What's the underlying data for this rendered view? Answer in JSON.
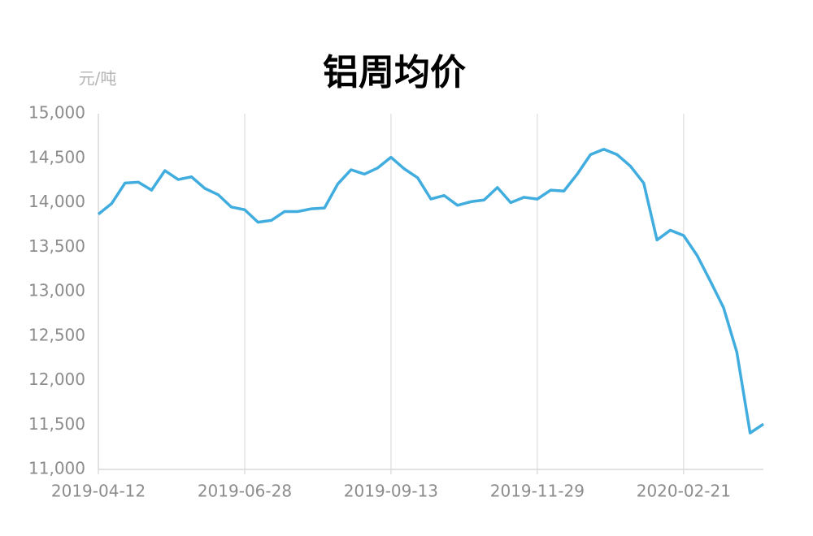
{
  "chart_data": {
    "type": "line",
    "title": "铝周均价",
    "y_label": "元/吨",
    "categories": [
      "2019-04-12",
      null,
      null,
      null,
      null,
      null,
      null,
      null,
      null,
      null,
      null,
      "2019-06-28",
      null,
      null,
      null,
      null,
      null,
      null,
      null,
      null,
      null,
      null,
      "2019-09-13",
      null,
      null,
      null,
      null,
      null,
      null,
      null,
      null,
      null,
      null,
      "2019-11-29",
      null,
      null,
      null,
      null,
      null,
      null,
      null,
      null,
      null,
      null,
      "2020-02-21",
      null,
      null,
      null,
      null,
      null,
      null
    ],
    "values": [
      13870,
      13990,
      14220,
      14230,
      14140,
      14360,
      14260,
      14290,
      14160,
      14090,
      13950,
      13920,
      13780,
      13800,
      13900,
      13900,
      13930,
      13940,
      14210,
      14370,
      14320,
      14390,
      14510,
      14380,
      14280,
      14040,
      14080,
      13970,
      14010,
      14030,
      14170,
      14000,
      14060,
      14040,
      14140,
      14130,
      14320,
      14540,
      14600,
      14540,
      14410,
      14220,
      13580,
      13690,
      13630,
      13410,
      13120,
      12820,
      12320,
      11410,
      11510
    ],
    "color": "#41addf",
    "ylim": [
      11000,
      15000
    ],
    "yticks": [
      {
        "value": 11000,
        "label": "11,000"
      },
      {
        "value": 11500,
        "label": "11,500"
      },
      {
        "value": 12000,
        "label": "12,000"
      },
      {
        "value": 12500,
        "label": "12,500"
      },
      {
        "value": 13000,
        "label": "13,000"
      },
      {
        "value": 13500,
        "label": "13,500"
      },
      {
        "value": 14000,
        "label": "14,000"
      },
      {
        "value": 14500,
        "label": "14,500"
      },
      {
        "value": 15000,
        "label": "15,000"
      }
    ],
    "grid": "x"
  }
}
